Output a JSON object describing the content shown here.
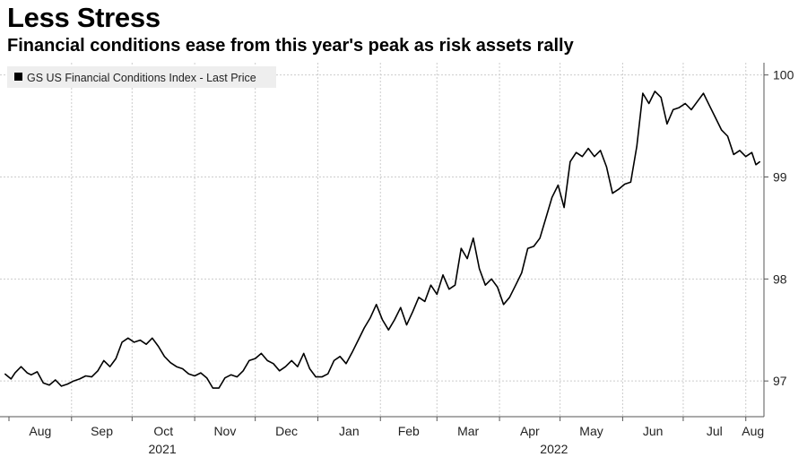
{
  "chart_data": {
    "type": "line",
    "title": "Less Stress",
    "subtitle": "Financial conditions ease from this year's peak as risk assets rally",
    "legend": "GS US Financial Conditions Index - Last Price",
    "ylim": [
      96.65,
      100.12
    ],
    "yticks": [
      "97",
      "98",
      "99",
      "100"
    ],
    "x_months": [
      "Aug",
      "Sep",
      "Oct",
      "Nov",
      "Dec",
      "Jan",
      "Feb",
      "Mar",
      "Apr",
      "May",
      "Jun",
      "Jul",
      "Aug"
    ],
    "x_years": [
      "2021",
      "2022"
    ],
    "x_range": [
      "2021-08-01",
      "2022-08-10"
    ],
    "series": [
      {
        "name": "GS US Financial Conditions Index - Last Price",
        "color": "#000000",
        "points": [
          [
            "2021-07-30",
            97.07
          ],
          [
            "2021-08-02",
            97.02
          ],
          [
            "2021-08-04",
            97.08
          ],
          [
            "2021-08-07",
            97.14
          ],
          [
            "2021-08-10",
            97.08
          ],
          [
            "2021-08-12",
            97.06
          ],
          [
            "2021-08-15",
            97.09
          ],
          [
            "2021-08-18",
            96.98
          ],
          [
            "2021-08-21",
            96.96
          ],
          [
            "2021-08-24",
            97.01
          ],
          [
            "2021-08-27",
            96.95
          ],
          [
            "2021-08-30",
            96.97
          ],
          [
            "2021-09-02",
            97.0
          ],
          [
            "2021-09-05",
            97.02
          ],
          [
            "2021-09-08",
            97.05
          ],
          [
            "2021-09-11",
            97.04
          ],
          [
            "2021-09-14",
            97.1
          ],
          [
            "2021-09-17",
            97.2
          ],
          [
            "2021-09-20",
            97.14
          ],
          [
            "2021-09-23",
            97.22
          ],
          [
            "2021-09-26",
            97.38
          ],
          [
            "2021-09-29",
            97.42
          ],
          [
            "2021-10-02",
            97.38
          ],
          [
            "2021-10-05",
            97.4
          ],
          [
            "2021-10-08",
            97.36
          ],
          [
            "2021-10-11",
            97.42
          ],
          [
            "2021-10-14",
            97.34
          ],
          [
            "2021-10-17",
            97.24
          ],
          [
            "2021-10-20",
            97.18
          ],
          [
            "2021-10-23",
            97.14
          ],
          [
            "2021-10-26",
            97.12
          ],
          [
            "2021-10-29",
            97.07
          ],
          [
            "2021-11-01",
            97.05
          ],
          [
            "2021-11-04",
            97.08
          ],
          [
            "2021-11-07",
            97.03
          ],
          [
            "2021-11-10",
            96.93
          ],
          [
            "2021-11-13",
            96.93
          ],
          [
            "2021-11-16",
            97.03
          ],
          [
            "2021-11-19",
            97.06
          ],
          [
            "2021-11-22",
            97.04
          ],
          [
            "2021-11-25",
            97.1
          ],
          [
            "2021-11-28",
            97.2
          ],
          [
            "2021-12-01",
            97.22
          ],
          [
            "2021-12-04",
            97.27
          ],
          [
            "2021-12-07",
            97.2
          ],
          [
            "2021-12-10",
            97.17
          ],
          [
            "2021-12-13",
            97.1
          ],
          [
            "2021-12-16",
            97.14
          ],
          [
            "2021-12-19",
            97.2
          ],
          [
            "2021-12-22",
            97.14
          ],
          [
            "2021-12-25",
            97.27
          ],
          [
            "2021-12-28",
            97.12
          ],
          [
            "2021-12-31",
            97.04
          ],
          [
            "2022-01-03",
            97.04
          ],
          [
            "2022-01-06",
            97.07
          ],
          [
            "2022-01-09",
            97.2
          ],
          [
            "2022-01-12",
            97.24
          ],
          [
            "2022-01-15",
            97.17
          ],
          [
            "2022-01-18",
            97.28
          ],
          [
            "2022-01-21",
            97.4
          ],
          [
            "2022-01-24",
            97.52
          ],
          [
            "2022-01-27",
            97.62
          ],
          [
            "2022-01-30",
            97.75
          ],
          [
            "2022-02-02",
            97.6
          ],
          [
            "2022-02-05",
            97.5
          ],
          [
            "2022-02-08",
            97.6
          ],
          [
            "2022-02-11",
            97.72
          ],
          [
            "2022-02-14",
            97.55
          ],
          [
            "2022-02-17",
            97.68
          ],
          [
            "2022-02-20",
            97.82
          ],
          [
            "2022-02-23",
            97.78
          ],
          [
            "2022-02-26",
            97.94
          ],
          [
            "2022-03-01",
            97.85
          ],
          [
            "2022-03-04",
            98.04
          ],
          [
            "2022-03-07",
            97.9
          ],
          [
            "2022-03-10",
            97.94
          ],
          [
            "2022-03-13",
            98.3
          ],
          [
            "2022-03-16",
            98.2
          ],
          [
            "2022-03-19",
            98.4
          ],
          [
            "2022-03-22",
            98.1
          ],
          [
            "2022-03-25",
            97.94
          ],
          [
            "2022-03-28",
            98.0
          ],
          [
            "2022-03-31",
            97.92
          ],
          [
            "2022-04-03",
            97.75
          ],
          [
            "2022-04-06",
            97.82
          ],
          [
            "2022-04-09",
            97.94
          ],
          [
            "2022-04-12",
            98.06
          ],
          [
            "2022-04-15",
            98.3
          ],
          [
            "2022-04-18",
            98.32
          ],
          [
            "2022-04-21",
            98.4
          ],
          [
            "2022-04-24",
            98.6
          ],
          [
            "2022-04-27",
            98.8
          ],
          [
            "2022-04-30",
            98.92
          ],
          [
            "2022-05-03",
            98.7
          ],
          [
            "2022-05-06",
            99.15
          ],
          [
            "2022-05-09",
            99.24
          ],
          [
            "2022-05-12",
            99.2
          ],
          [
            "2022-05-15",
            99.28
          ],
          [
            "2022-05-18",
            99.2
          ],
          [
            "2022-05-21",
            99.26
          ],
          [
            "2022-05-24",
            99.1
          ],
          [
            "2022-05-27",
            98.84
          ],
          [
            "2022-05-30",
            98.88
          ],
          [
            "2022-06-02",
            98.93
          ],
          [
            "2022-06-05",
            98.95
          ],
          [
            "2022-06-08",
            99.3
          ],
          [
            "2022-06-11",
            99.82
          ],
          [
            "2022-06-14",
            99.72
          ],
          [
            "2022-06-17",
            99.84
          ],
          [
            "2022-06-20",
            99.78
          ],
          [
            "2022-06-23",
            99.52
          ],
          [
            "2022-06-26",
            99.66
          ],
          [
            "2022-06-29",
            99.68
          ],
          [
            "2022-07-02",
            99.72
          ],
          [
            "2022-07-05",
            99.66
          ],
          [
            "2022-07-08",
            99.74
          ],
          [
            "2022-07-11",
            99.82
          ],
          [
            "2022-07-14",
            99.7
          ],
          [
            "2022-07-17",
            99.58
          ],
          [
            "2022-07-20",
            99.46
          ],
          [
            "2022-07-23",
            99.4
          ],
          [
            "2022-07-26",
            99.22
          ],
          [
            "2022-07-29",
            99.26
          ],
          [
            "2022-08-01",
            99.2
          ],
          [
            "2022-08-04",
            99.24
          ],
          [
            "2022-08-06",
            99.12
          ],
          [
            "2022-08-08",
            99.15
          ]
        ]
      }
    ]
  }
}
